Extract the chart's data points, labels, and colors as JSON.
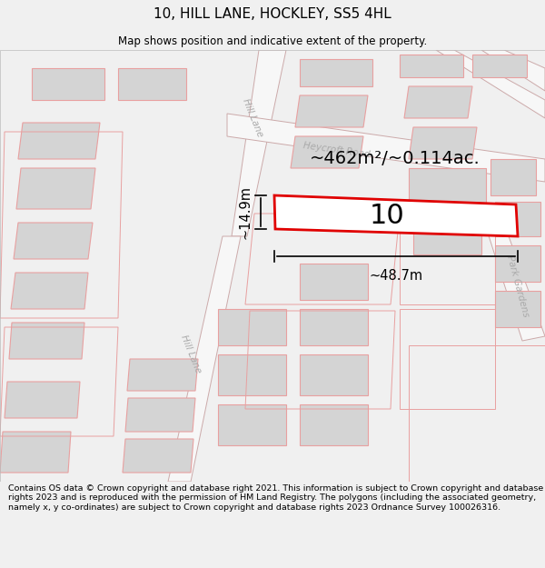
{
  "title": "10, HILL LANE, HOCKLEY, SS5 4HL",
  "subtitle": "Map shows position and indicative extent of the property.",
  "footer": "Contains OS data © Crown copyright and database right 2021. This information is subject to Crown copyright and database rights 2023 and is reproduced with the permission of HM Land Registry. The polygons (including the associated geometry, namely x, y co-ordinates) are subject to Crown copyright and database rights 2023 Ordnance Survey 100026316.",
  "area_label": "~462m²/~0.114ac.",
  "width_label": "~48.7m",
  "height_label": "~14.9m",
  "plot_number": "10",
  "bg_color": "#f0f0f0",
  "map_bg": "#ffffff",
  "building_fill": "#d4d4d4",
  "building_stroke": "#e8a0a0",
  "plot_outline": "#e8a0a0",
  "highlight_stroke": "#e00000",
  "highlight_fill": "#ffffff",
  "road_fill": "#f7f7f7",
  "road_stroke": "#ccaaaa",
  "road_label_color": "#aaaaaa",
  "dim_line_color": "#111111",
  "title_color": "#000000",
  "footer_color": "#000000"
}
